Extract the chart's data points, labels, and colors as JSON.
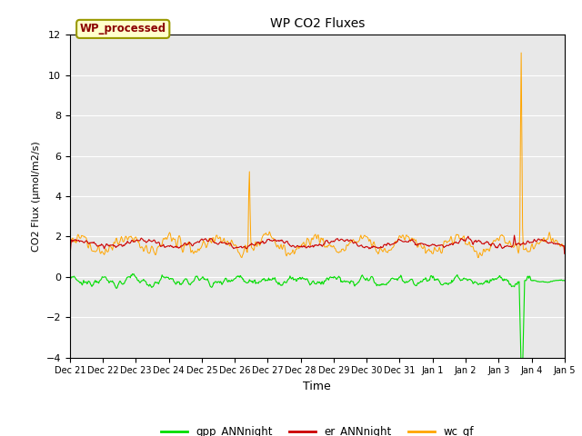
{
  "title": "WP CO2 Fluxes",
  "xlabel": "Time",
  "ylabel": "CO2 Flux (μmol/m2/s)",
  "ylim": [
    -4,
    12
  ],
  "yticks": [
    -4,
    -2,
    0,
    2,
    4,
    6,
    8,
    10,
    12
  ],
  "annotation_text": "WP_processed",
  "annotation_color": "#8B0000",
  "annotation_bg": "#FFFFCC",
  "annotation_border": "#999900",
  "bg_color": "#E8E8E8",
  "grid_color": "#FFFFFF",
  "line_green": "#00DD00",
  "line_red": "#CC0000",
  "line_orange": "#FFA500",
  "legend_labels": [
    "gpp_ANNnight",
    "er_ANNnight",
    "wc_gf"
  ],
  "n_points": 720,
  "figsize": [
    6.4,
    4.8
  ],
  "dpi": 100
}
